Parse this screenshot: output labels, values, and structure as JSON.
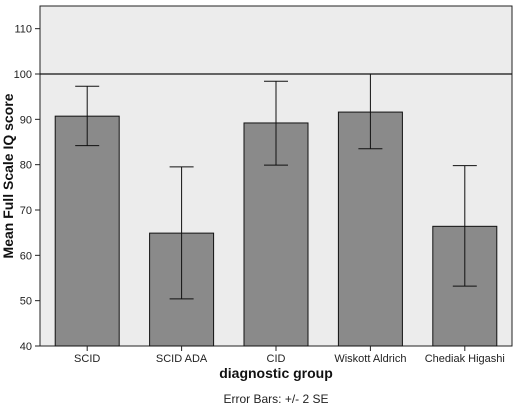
{
  "chart_data": {
    "type": "bar",
    "categories": [
      "SCID",
      "SCID ADA",
      "CID",
      "Wiskott Aldrich",
      "Chediak Higashi"
    ],
    "values": [
      90.7,
      64.9,
      89.2,
      91.6,
      66.4
    ],
    "error_low": [
      84.2,
      50.4,
      79.9,
      83.5,
      53.2
    ],
    "error_high": [
      97.3,
      79.5,
      98.4,
      100.0,
      79.8
    ],
    "xlabel": "diagnostic group",
    "ylabel": "Mean Full Scale IQ score",
    "ylim": [
      40,
      115
    ],
    "yticks": [
      40,
      50,
      60,
      70,
      80,
      90,
      100,
      110
    ],
    "reference_line": 100,
    "grid": false,
    "note": "Error Bars: +/- 2 SE",
    "colors": {
      "plot_background": "#ececec",
      "bar_fill": "#8a8a8a",
      "bar_stroke": "#111111",
      "error_bar": "#111111"
    }
  }
}
